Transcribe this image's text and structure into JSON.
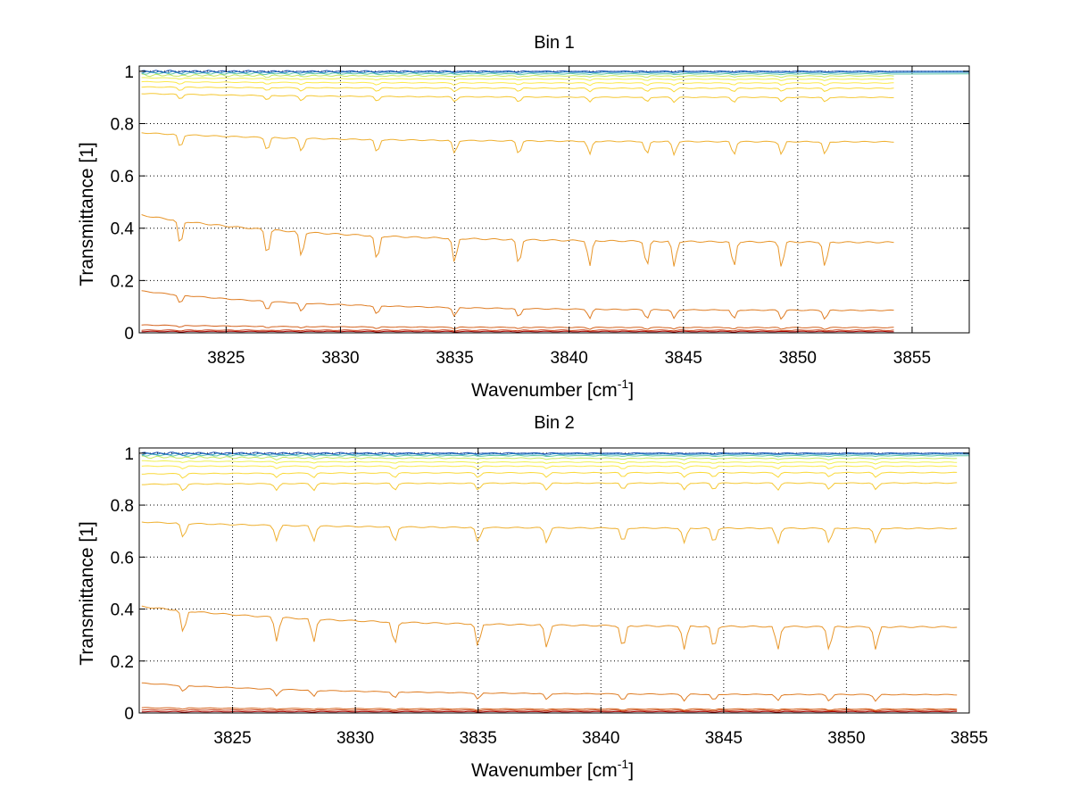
{
  "colors": {
    "background": "#ffffff",
    "axis": "#000000",
    "grid": "#000000",
    "series_ramp": [
      "#a40000",
      "#c43a12",
      "#d4621d",
      "#df7d24",
      "#e8962a",
      "#efb030",
      "#f5c834",
      "#fad93a",
      "#fce94a",
      "#f0f050",
      "#c8e860",
      "#60c8a8",
      "#2c90c8",
      "#1a4fb5"
    ]
  },
  "chart_data": [
    {
      "type": "line",
      "title": "Bin 1",
      "xlabel": "Wavenumber [cm",
      "xlabel_sup": "-1",
      "xlabel_end": "]",
      "ylabel": "Transmittance [1]",
      "xlim": [
        3821.2,
        3857.5
      ],
      "ylim": [
        0,
        1.02
      ],
      "x_range_data": [
        3821.3,
        3854.2
      ],
      "flat_extension_to": 3857.5,
      "xticks": [
        3825,
        3830,
        3835,
        3840,
        3845,
        3850,
        3855
      ],
      "xtick_labels": [
        "3825",
        "3830",
        "3835",
        "3840",
        "3845",
        "3850",
        "3855"
      ],
      "yticks": [
        0,
        0.2,
        0.4,
        0.6,
        0.8,
        1
      ],
      "ytick_labels": [
        "0",
        "0.2",
        "0.4",
        "0.6",
        "0.8",
        "1"
      ],
      "grid": true,
      "series": [
        {
          "start": 0.005,
          "end": 0.005
        },
        {
          "start": 0.01,
          "end": 0.01
        },
        {
          "start": 0.03,
          "end": 0.02
        },
        {
          "start": 0.16,
          "end": 0.085
        },
        {
          "start": 0.45,
          "end": 0.345
        },
        {
          "start": 0.765,
          "end": 0.73
        },
        {
          "start": 0.915,
          "end": 0.9
        },
        {
          "start": 0.94,
          "end": 0.935
        },
        {
          "start": 0.96,
          "end": 0.955
        },
        {
          "start": 0.975,
          "end": 0.97
        },
        {
          "start": 0.985,
          "end": 0.982
        },
        {
          "start": 0.993,
          "end": 0.99
        },
        {
          "start": 0.997,
          "end": 0.996
        },
        {
          "start": 1.0,
          "end": 1.0
        }
      ],
      "absorption_lines": [
        3823.0,
        3826.8,
        3828.3,
        3831.6,
        3835.0,
        3837.8,
        3840.9,
        3843.4,
        3844.6,
        3847.2,
        3849.3,
        3851.2
      ]
    },
    {
      "type": "line",
      "title": "Bin 2",
      "xlabel": "Wavenumber [cm",
      "xlabel_sup": "-1",
      "xlabel_end": "]",
      "ylabel": "Transmittance [1]",
      "xlim": [
        3821.2,
        3855.0
      ],
      "ylim": [
        0,
        1.02
      ],
      "x_range_data": [
        3821.3,
        3854.5
      ],
      "flat_extension_to": 3855.0,
      "xticks": [
        3825,
        3830,
        3835,
        3840,
        3845,
        3850,
        3855
      ],
      "xtick_labels": [
        "3825",
        "3830",
        "3835",
        "3840",
        "3845",
        "3850",
        "3855"
      ],
      "yticks": [
        0,
        0.2,
        0.4,
        0.6,
        0.8,
        1
      ],
      "ytick_labels": [
        "0",
        "0.2",
        "0.4",
        "0.6",
        "0.8",
        "1"
      ],
      "grid": true,
      "series": [
        {
          "start": 0.005,
          "end": 0.005
        },
        {
          "start": 0.012,
          "end": 0.01
        },
        {
          "start": 0.02,
          "end": 0.015
        },
        {
          "start": 0.115,
          "end": 0.07
        },
        {
          "start": 0.41,
          "end": 0.33
        },
        {
          "start": 0.735,
          "end": 0.71
        },
        {
          "start": 0.88,
          "end": 0.885
        },
        {
          "start": 0.92,
          "end": 0.925
        },
        {
          "start": 0.95,
          "end": 0.95
        },
        {
          "start": 0.97,
          "end": 0.965
        },
        {
          "start": 0.985,
          "end": 0.98
        },
        {
          "start": 0.993,
          "end": 0.99
        },
        {
          "start": 0.997,
          "end": 0.996
        },
        {
          "start": 1.0,
          "end": 1.0
        }
      ],
      "absorption_lines": [
        3823.0,
        3826.8,
        3828.3,
        3831.6,
        3835.0,
        3837.8,
        3840.9,
        3843.4,
        3844.6,
        3847.2,
        3849.3,
        3851.2
      ]
    }
  ]
}
